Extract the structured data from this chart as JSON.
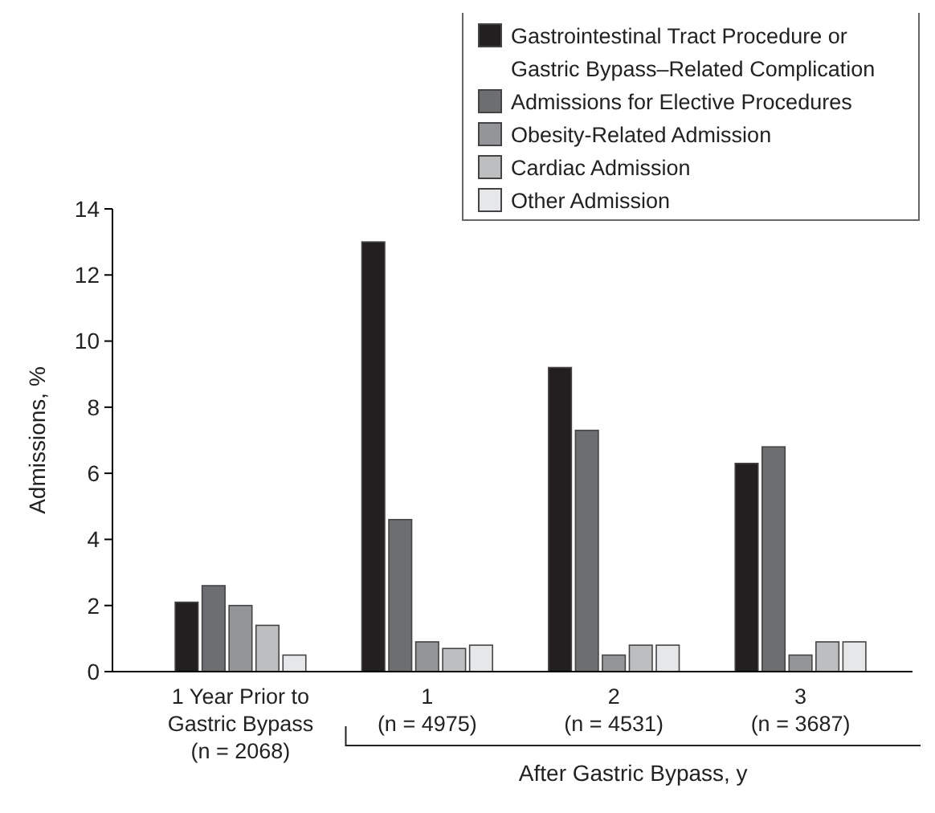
{
  "chart_data": {
    "type": "bar",
    "ylabel": "Admissions, %",
    "categories": [
      "1 Year Prior to\nGastric Bypass\n(n = 2068)",
      "1\n(n = 4975)",
      "2\n(n = 4531)",
      "3\n(n = 3687)"
    ],
    "series": [
      {
        "name": "Gastrointestinal Tract Procedure or Gastric Bypass–Related Complication",
        "color": "#231f20",
        "values": [
          2.1,
          13.0,
          9.2,
          6.3
        ]
      },
      {
        "name": "Admissions for Elective Procedures",
        "color": "#6d6e71",
        "values": [
          2.6,
          4.6,
          7.3,
          6.8
        ]
      },
      {
        "name": "Obesity-Related Admission",
        "color": "#939598",
        "values": [
          2.0,
          0.9,
          0.5,
          0.5
        ]
      },
      {
        "name": "Cardiac Admission",
        "color": "#bcbec0",
        "values": [
          1.4,
          0.7,
          0.8,
          0.9
        ]
      },
      {
        "name": "Other Admission",
        "color": "#e6e7e8",
        "values": [
          0.5,
          0.8,
          0.8,
          0.9
        ]
      }
    ],
    "ylim": [
      0,
      14
    ],
    "yticks": [
      0,
      2,
      4,
      6,
      8,
      10,
      12,
      14
    ],
    "grid": false,
    "legend": "top right",
    "annotations": [
      "After Gastric Bypass, y"
    ]
  }
}
